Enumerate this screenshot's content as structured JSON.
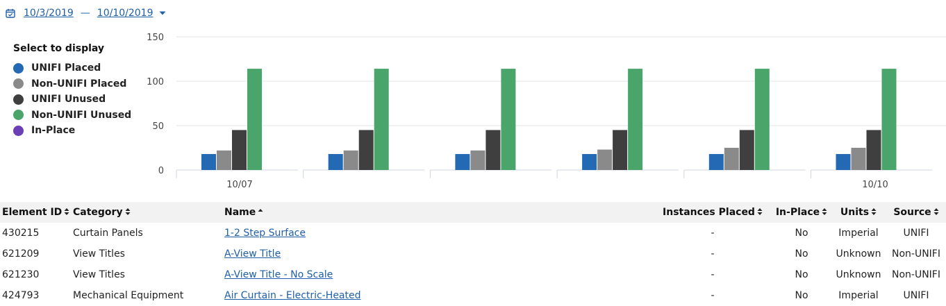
{
  "date_range": {
    "start": "10/3/2019",
    "separator": "—",
    "end": "10/10/2019"
  },
  "legend": {
    "title": "Select to display",
    "items": [
      {
        "label": "UNIFI Placed",
        "color": "#2469b3"
      },
      {
        "label": "Non-UNIFI Placed",
        "color": "#8a8a8a"
      },
      {
        "label": "UNIFI Unused",
        "color": "#3f3f3f"
      },
      {
        "label": "Non-UNIFI Unused",
        "color": "#4aa56b"
      },
      {
        "label": "In-Place",
        "color": "#6b3fb5"
      }
    ]
  },
  "chart_data": {
    "type": "bar",
    "y_ticks": [
      0,
      50,
      100,
      150
    ],
    "ylim": [
      0,
      150
    ],
    "x_tick_labels": [
      "10/07",
      "10/10"
    ],
    "grid": true,
    "groups": [
      {
        "values": [
          18,
          22,
          45,
          114
        ]
      },
      {
        "values": [
          18,
          22,
          45,
          114
        ]
      },
      {
        "values": [
          18,
          22,
          45,
          114
        ]
      },
      {
        "values": [
          18,
          23,
          45,
          114
        ]
      },
      {
        "values": [
          18,
          25,
          45,
          114
        ]
      },
      {
        "values": [
          18,
          25,
          45,
          114
        ]
      }
    ],
    "series_colors": [
      "#2469b3",
      "#8a8a8a",
      "#3f3f3f",
      "#4aa56b"
    ]
  },
  "table": {
    "columns": [
      {
        "label": "Element ID",
        "sort": "both"
      },
      {
        "label": "Category",
        "sort": "both"
      },
      {
        "label": "Name",
        "sort": "asc"
      },
      {
        "label": "Instances Placed",
        "sort": "both"
      },
      {
        "label": "In-Place",
        "sort": "both"
      },
      {
        "label": "Units",
        "sort": "both"
      },
      {
        "label": "Source",
        "sort": "both"
      }
    ],
    "rows": [
      {
        "id": "430215",
        "category": "Curtain Panels",
        "name": "1-2 Step Surface",
        "instances": "-",
        "inplace": "No",
        "units": "Imperial",
        "source": "UNIFI"
      },
      {
        "id": "621209",
        "category": "View Titles",
        "name": "A-View Title",
        "instances": "-",
        "inplace": "No",
        "units": "Unknown",
        "source": "Non-UNIFI"
      },
      {
        "id": "621230",
        "category": "View Titles",
        "name": "A-View Title - No Scale",
        "instances": "-",
        "inplace": "No",
        "units": "Unknown",
        "source": "Non-UNIFI"
      },
      {
        "id": "424793",
        "category": "Mechanical Equipment",
        "name": "Air Curtain - Electric-Heated",
        "instances": "-",
        "inplace": "No",
        "units": "Imperial",
        "source": "UNIFI"
      }
    ]
  }
}
